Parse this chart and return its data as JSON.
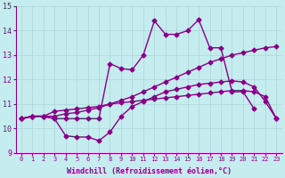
{
  "xlabel": "Windchill (Refroidissement éolien,°C)",
  "xlim": [
    -0.5,
    23.5
  ],
  "ylim": [
    9,
    15
  ],
  "xticks": [
    0,
    1,
    2,
    3,
    4,
    5,
    6,
    7,
    8,
    9,
    10,
    11,
    12,
    13,
    14,
    15,
    16,
    17,
    18,
    19,
    20,
    21,
    22,
    23
  ],
  "yticks": [
    9,
    10,
    11,
    12,
    13,
    14,
    15
  ],
  "bg_color": "#c5ecee",
  "grid_color": "#b0d8da",
  "line_color": "#880088",
  "marker": "D",
  "markersize": 2.5,
  "linewidth": 1.0,
  "series": [
    [
      10.4,
      10.5,
      10.5,
      10.4,
      10.4,
      10.4,
      10.4,
      10.4,
      12.65,
      12.45,
      12.4,
      13.0,
      14.4,
      13.85,
      13.85,
      14.0,
      14.45,
      13.3,
      13.3,
      11.5,
      11.5,
      10.8,
      null,
      null
    ],
    [
      10.4,
      10.5,
      10.5,
      10.4,
      9.7,
      9.65,
      9.65,
      9.5,
      9.85,
      10.5,
      10.9,
      11.1,
      11.3,
      11.5,
      11.6,
      11.7,
      11.8,
      11.85,
      11.9,
      11.95,
      11.9,
      11.7,
      11.1,
      10.4
    ],
    [
      10.4,
      10.5,
      10.5,
      10.5,
      10.6,
      10.65,
      10.75,
      10.85,
      11.0,
      11.15,
      11.3,
      11.5,
      11.7,
      11.9,
      12.1,
      12.3,
      12.5,
      12.7,
      12.85,
      13.0,
      13.1,
      13.2,
      13.3,
      13.35
    ],
    [
      10.4,
      10.5,
      10.5,
      10.7,
      10.75,
      10.8,
      10.85,
      10.9,
      11.0,
      11.05,
      11.1,
      11.15,
      11.2,
      11.25,
      11.3,
      11.35,
      11.4,
      11.45,
      11.5,
      11.55,
      11.55,
      11.5,
      11.3,
      10.4
    ]
  ]
}
